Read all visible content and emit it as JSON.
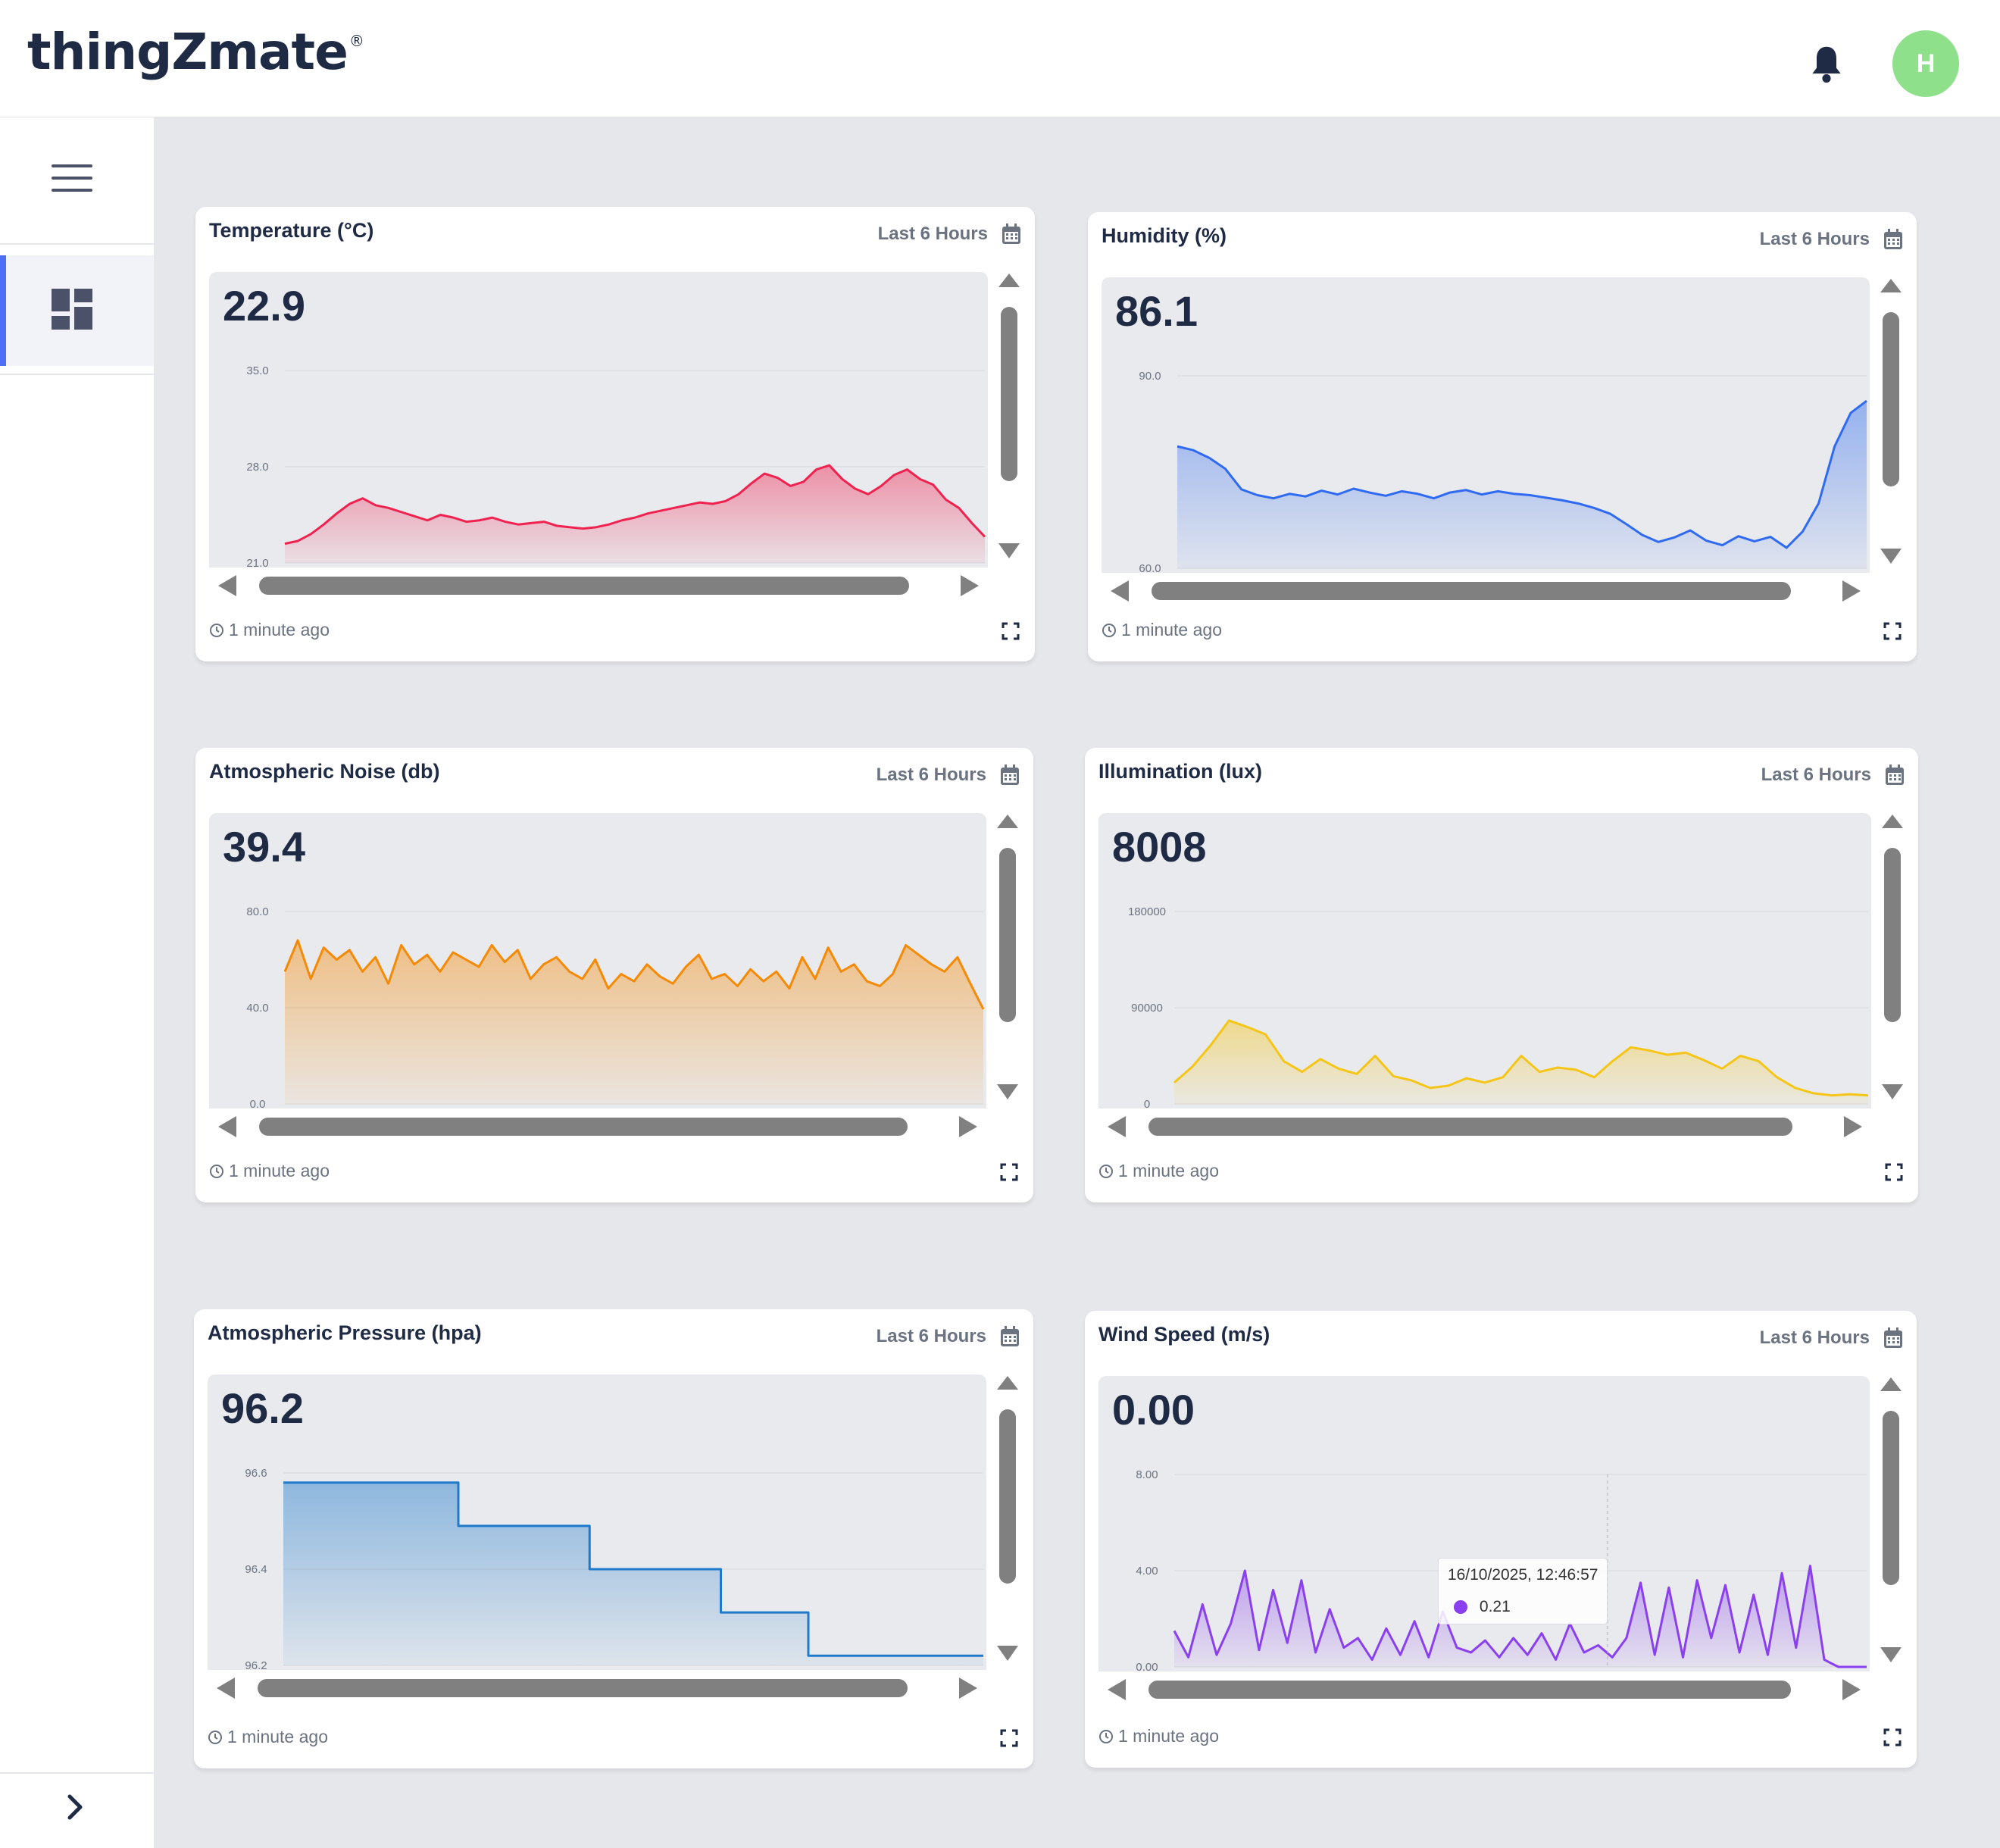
{
  "app": {
    "brand": "thingZmate",
    "brand_mark": "®",
    "avatar_initial": "H"
  },
  "cards": [
    {
      "title": "Temperature (°C)",
      "range": "Last 6 Hours",
      "value": "22.9",
      "updated": "1 minute ago",
      "color": "#f0224f",
      "ticks": [
        "35.0",
        "28.0",
        "21.0"
      ],
      "ymin": 21,
      "ymax": 35,
      "values": [
        22.4,
        22.6,
        23.1,
        23.8,
        24.6,
        25.3,
        25.7,
        25.2,
        25.0,
        24.7,
        24.4,
        24.1,
        24.5,
        24.3,
        24.0,
        24.1,
        24.3,
        24.0,
        23.8,
        23.9,
        24.0,
        23.7,
        23.6,
        23.5,
        23.6,
        23.8,
        24.1,
        24.3,
        24.6,
        24.8,
        25.0,
        25.2,
        25.4,
        25.3,
        25.5,
        26.0,
        26.8,
        27.5,
        27.2,
        26.6,
        26.9,
        27.8,
        28.1,
        27.1,
        26.4,
        26.0,
        26.6,
        27.4,
        27.8,
        27.1,
        26.7,
        25.6,
        25.0,
        23.9,
        22.9
      ]
    },
    {
      "title": "Humidity (%)",
      "range": "Last 6 Hours",
      "value": "86.1",
      "updated": "1 minute ago",
      "color": "#2f6bf2",
      "ticks": [
        "90.0",
        "60.0"
      ],
      "ymin": 60,
      "ymax": 90,
      "values": [
        79.0,
        78.4,
        77.2,
        75.5,
        72.3,
        71.4,
        70.9,
        71.6,
        71.2,
        72.1,
        71.5,
        72.4,
        71.8,
        71.3,
        72.0,
        71.6,
        70.9,
        71.8,
        72.2,
        71.5,
        72.0,
        71.6,
        71.4,
        71.0,
        70.6,
        70.1,
        69.4,
        68.5,
        66.9,
        65.2,
        64.1,
        64.8,
        65.9,
        64.3,
        63.6,
        65.0,
        64.2,
        64.9,
        63.2,
        65.7,
        70.1,
        79.0,
        84.2,
        86.1
      ]
    },
    {
      "title": "Atmospheric Noise (db)",
      "range": "Last 6 Hours",
      "value": "39.4",
      "updated": "1 minute ago",
      "color": "#f58a07",
      "ticks": [
        "80.0",
        "40.0",
        "0.0"
      ],
      "ymin": 0,
      "ymax": 80,
      "values": [
        55,
        68,
        52,
        65,
        60,
        64,
        55,
        61,
        50,
        66,
        58,
        62,
        55,
        63,
        60,
        57,
        66,
        59,
        64,
        52,
        58,
        61,
        55,
        52,
        60,
        48,
        54,
        51,
        58,
        53,
        50,
        57,
        62,
        52,
        54,
        49,
        56,
        51,
        55,
        48,
        61,
        52,
        65,
        55,
        58,
        51,
        49,
        54,
        66,
        62,
        58,
        55,
        61,
        50,
        39.4
      ]
    },
    {
      "title": "Illumination (lux)",
      "range": "Last 6 Hours",
      "value": "8008",
      "updated": "1 minute ago",
      "color": "#f5c518",
      "ticks": [
        "180000",
        "90000",
        "0"
      ],
      "ymin": 0,
      "ymax": 180000,
      "values": [
        20000,
        35000,
        55000,
        78000,
        72000,
        65000,
        40000,
        30000,
        42000,
        33000,
        28000,
        45000,
        26000,
        22000,
        15000,
        17000,
        24000,
        20000,
        25000,
        45000,
        30000,
        34000,
        32000,
        25000,
        40000,
        53000,
        50000,
        46000,
        48000,
        41000,
        33000,
        45000,
        40000,
        25000,
        15000,
        10000,
        8000,
        9000,
        8008
      ]
    },
    {
      "title": "Atmospheric Pressure (hpa)",
      "range": "Last 6 Hours",
      "value": "96.2",
      "updated": "1 minute ago",
      "color": "#1f7acc",
      "ticks": [
        "96.6",
        "96.4",
        "96.2"
      ],
      "ymin": 96.2,
      "ymax": 96.6,
      "values": [
        96.58,
        96.58,
        96.58,
        96.58,
        96.49,
        96.49,
        96.49,
        96.4,
        96.4,
        96.4,
        96.31,
        96.31,
        96.22,
        96.22,
        96.22,
        96.22,
        96.22
      ]
    },
    {
      "title": "Wind Speed (m/s)",
      "range": "Last 6 Hours",
      "value": "0.00",
      "updated": "1 minute ago",
      "color": "#8a3ff0",
      "ticks": [
        "8.00",
        "4.00",
        "0.00"
      ],
      "ymin": 0,
      "ymax": 8,
      "values": [
        1.5,
        0.4,
        2.6,
        0.5,
        1.8,
        4.0,
        0.7,
        3.2,
        1.0,
        3.6,
        0.6,
        2.4,
        0.8,
        1.2,
        0.3,
        1.6,
        0.5,
        1.9,
        0.4,
        2.3,
        0.8,
        0.6,
        1.1,
        0.4,
        1.2,
        0.5,
        1.4,
        0.3,
        1.8,
        0.6,
        0.9,
        0.4,
        1.2,
        3.5,
        0.5,
        3.3,
        0.4,
        3.6,
        1.2,
        3.4,
        0.6,
        3.0,
        0.5,
        3.9,
        0.8,
        4.2,
        0.3,
        0.0,
        0.0,
        0.0
      ],
      "tooltip": {
        "time": "16/10/2025, 12:46:57",
        "value": "0.21"
      }
    }
  ]
}
